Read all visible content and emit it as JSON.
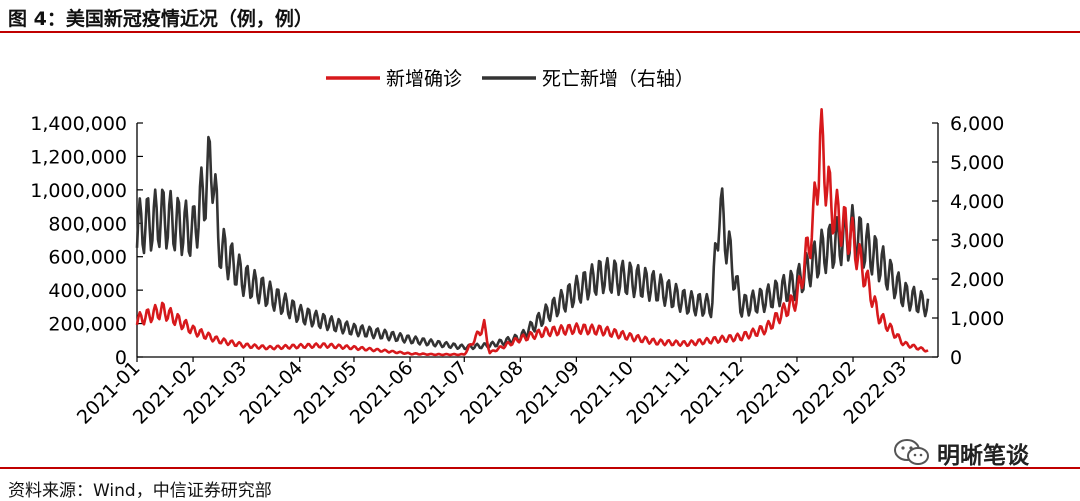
{
  "figure_title": "图 4：美国新冠疫情近况（例，例）",
  "source_note": "资料来源：Wind，中信证券研究部",
  "watermark": "明晰笔谈",
  "colors": {
    "accent_rule": "#c00000",
    "new_cases": "#d7191c",
    "deaths": "#333333"
  },
  "chart_data": {
    "type": "line",
    "title": "",
    "legend_position": "top-center",
    "grid": false,
    "x_labels": [
      "2021-01",
      "2021-02",
      "2021-03",
      "2021-04",
      "2021-05",
      "2021-06",
      "2021-07",
      "2021-08",
      "2021-09",
      "2021-10",
      "2021-11",
      "2021-12",
      "2022-01",
      "2022-02",
      "2022-03"
    ],
    "left_axis": {
      "ylim": [
        0,
        1400000
      ],
      "ticks": [
        "0",
        "200,000",
        "400,000",
        "600,000",
        "800,000",
        "1,000,000",
        "1,200,000",
        "1,400,000"
      ]
    },
    "right_axis": {
      "ylim": [
        0,
        6000
      ],
      "ticks": [
        "0",
        "1,000",
        "2,000",
        "3,000",
        "4,000",
        "5,000",
        "6,000"
      ]
    },
    "series": [
      {
        "name": "新增确诊",
        "axis": "left",
        "color": "#d7191c",
        "x": [
          "2021-01-01",
          "2021-01-15",
          "2021-02-01",
          "2021-02-15",
          "2021-03-01",
          "2021-03-15",
          "2021-04-01",
          "2021-04-15",
          "2021-05-01",
          "2021-05-15",
          "2021-06-01",
          "2021-06-15",
          "2021-07-01",
          "2021-07-12",
          "2021-07-15",
          "2021-08-01",
          "2021-08-15",
          "2021-09-01",
          "2021-09-15",
          "2021-10-01",
          "2021-10-15",
          "2021-11-01",
          "2021-11-15",
          "2021-12-01",
          "2021-12-15",
          "2022-01-01",
          "2022-01-10",
          "2022-01-14",
          "2022-01-20",
          "2022-02-01",
          "2022-02-15",
          "2022-03-01",
          "2022-03-15"
        ],
        "values": [
          220000,
          280000,
          160000,
          100000,
          70000,
          55000,
          65000,
          70000,
          55000,
          40000,
          20000,
          15000,
          15000,
          190000,
          25000,
          110000,
          150000,
          170000,
          160000,
          120000,
          90000,
          80000,
          100000,
          120000,
          170000,
          350000,
          800000,
          1300000,
          900000,
          700000,
          250000,
          80000,
          35000
        ]
      },
      {
        "name": "死亡新增（右轴）",
        "axis": "right",
        "color": "#333333",
        "x": [
          "2021-01-01",
          "2021-01-15",
          "2021-02-01",
          "2021-02-12",
          "2021-02-15",
          "2021-03-01",
          "2021-03-15",
          "2021-04-01",
          "2021-04-15",
          "2021-05-01",
          "2021-05-15",
          "2021-06-01",
          "2021-06-15",
          "2021-07-01",
          "2021-07-15",
          "2021-08-01",
          "2021-08-15",
          "2021-09-01",
          "2021-09-15",
          "2021-10-01",
          "2021-10-15",
          "2021-11-01",
          "2021-11-15",
          "2021-11-19",
          "2021-12-01",
          "2021-12-15",
          "2022-01-01",
          "2022-01-15",
          "2022-02-01",
          "2022-02-15",
          "2022-03-01",
          "2022-03-15"
        ],
        "values": [
          3300,
          3600,
          3200,
          5100,
          2900,
          2000,
          1600,
          1100,
          900,
          700,
          600,
          450,
          350,
          250,
          300,
          500,
          1100,
          1700,
          2100,
          2000,
          1800,
          1400,
          1300,
          3900,
          1300,
          1500,
          1900,
          2700,
          3200,
          2500,
          1600,
          1300
        ]
      }
    ]
  }
}
